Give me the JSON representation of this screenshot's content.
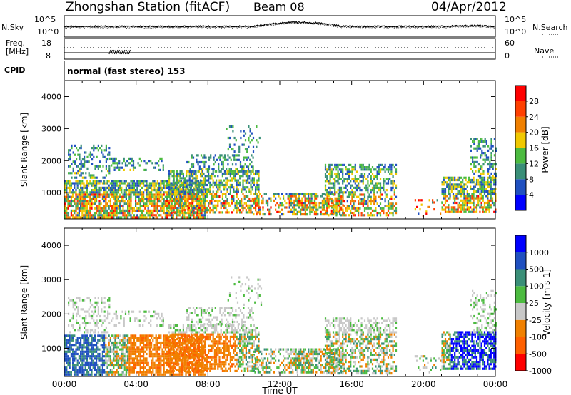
{
  "header": {
    "title": "Zhongshan Station (fitACF)",
    "beam": "Beam 08",
    "date": "04/Apr/2012"
  },
  "noise_panel": {
    "left_label": "N.Sky",
    "right_label": "N.Search",
    "ticks": [
      "10^5",
      "10^0"
    ]
  },
  "freq_panel": {
    "left_label_line1": "Freq.",
    "left_label_line2": "[MHz]",
    "left_ticks": [
      "18",
      "8"
    ],
    "right_label": "Nave",
    "right_ticks": [
      "60",
      "0"
    ]
  },
  "cpid_panel": {
    "label": "CPID",
    "text": "normal (fast stereo) 153"
  },
  "chart_data": [
    {
      "type": "heatmap",
      "quantity": "power",
      "ylabel": "Slant Range [km]",
      "yticks": [
        "1000",
        "2000",
        "3000",
        "4000"
      ],
      "ylim": [
        180,
        4500
      ],
      "colorbar_label": "Power [dB]",
      "colorbar_ticks": [
        "4",
        "8",
        "12",
        "16",
        "20",
        "24",
        "28"
      ],
      "colorbar_colors": [
        "#0000ff",
        "#2050c0",
        "#3a8f78",
        "#4cbb40",
        "#f0c800",
        "#f08000",
        "#ff4000",
        "#ff0000"
      ]
    },
    {
      "type": "heatmap",
      "quantity": "velocity",
      "xlabel": "Time UT",
      "xticks": [
        "00:00",
        "04:00",
        "08:00",
        "12:00",
        "16:00",
        "20:00",
        "00:00"
      ],
      "ylabel": "Slant Range [km]",
      "yticks": [
        "1000",
        "2000",
        "3000",
        "4000"
      ],
      "ylim": [
        180,
        4500
      ],
      "colorbar_label": "Velocity [m s-1]",
      "colorbar_ticks": [
        "1000",
        "500",
        "100",
        "25",
        "-25",
        "-100",
        "-500",
        "-1000"
      ],
      "colorbar_colors": [
        "#0000ff",
        "#2050c0",
        "#3a8f78",
        "#4cbb40",
        "#c8c8c8",
        "#f08000",
        "#ff6000",
        "#ff0000"
      ]
    }
  ]
}
